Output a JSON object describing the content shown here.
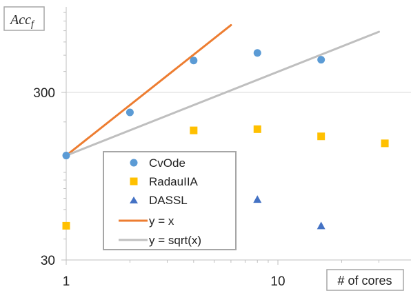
{
  "chart_data": {
    "type": "scatter",
    "ylabel_main": "Acc",
    "ylabel_sub": "f",
    "xlabel": "# of cores",
    "xscale": "log",
    "yscale": "log",
    "xlim": [
      1,
      35
    ],
    "ylim": [
      30,
      3000
    ],
    "xticks": [
      {
        "value": 1,
        "label": "1"
      },
      {
        "value": 10,
        "label": "10"
      }
    ],
    "yticks": [
      {
        "value": 30,
        "label": "30"
      },
      {
        "value": 300,
        "label": "300"
      }
    ],
    "grid": "horizontal major gridline at 300",
    "legend_position": "center",
    "series": [
      {
        "name": "CvOde",
        "kind": "marker",
        "marker": "circle",
        "color": "#5B9BD5",
        "x": [
          1,
          2,
          4,
          8,
          16
        ],
        "y": [
          126,
          228,
          465,
          516,
          470
        ]
      },
      {
        "name": "RadauIIA",
        "kind": "marker",
        "marker": "square",
        "color": "#FFC000",
        "x": [
          1,
          4,
          8,
          16,
          32
        ],
        "y": [
          48,
          178,
          181,
          164,
          149
        ]
      },
      {
        "name": "DASSL",
        "kind": "marker",
        "marker": "triangle",
        "color": "#4472C4",
        "x": [
          8,
          16
        ],
        "y": [
          69,
          48
        ]
      },
      {
        "name": "y = x",
        "kind": "line",
        "color": "#ED7D31",
        "x": [
          1,
          6
        ],
        "y": [
          126,
          756
        ]
      },
      {
        "name": "y = sqrt(x)",
        "kind": "line",
        "color": "#BFBFBF",
        "x": [
          1,
          30
        ],
        "y": [
          126,
          690
        ]
      }
    ]
  }
}
